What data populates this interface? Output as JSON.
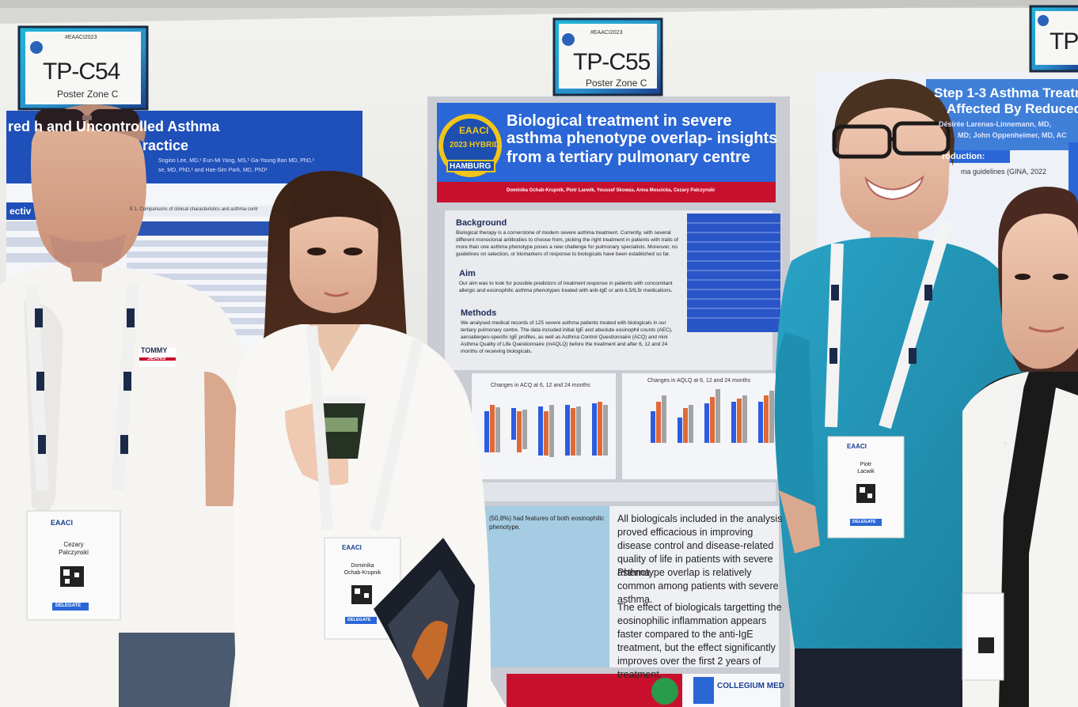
{
  "signs": [
    {
      "code": "TP-C54",
      "zone": "Poster Zone C",
      "tag": "#EAACI2023"
    },
    {
      "code": "TP-C55",
      "zone": "Poster Zone C",
      "tag": "#EAACI2023"
    },
    {
      "code": "TP",
      "zone": "",
      "tag": ""
    }
  ],
  "left_poster": {
    "title_line1": "red  h and Uncontrolled Asthma",
    "title_line2": "ractice",
    "authors": "Sngioo Lee, MD,¹ Eun-Mi Yang, MS,¹ Ga-Young Ban MD, PhD,¹",
    "authors2": "se, MD, PhD,¹ and Hae-Sim Park, MD, PhD¹",
    "section": "ectiv",
    "table_caption": "E 1. Comparisons of clinical characteristics and asthma contr"
  },
  "center_poster": {
    "logo_top": "EAACI",
    "logo_mid": "2023 HYBRID",
    "logo_bottom": "HAMBURG",
    "title_line1": "Biological treatment in severe",
    "title_line2": "asthma phenotype overlap- insights",
    "title_line3": "from a tertiary pulmonary centre",
    "authors": "Dominika Ochab-Krupnik, Piotr Lacwik, Youssef Skowas, Anna Moscicka, Cezary Palczynski",
    "background_heading": "Background",
    "background_text": "Biological therapy is a cornerstone of modern severe asthma treatment. Currently, with several different monoclonal antibodies to choose from, picking the right treatment in patients with traits of more than one asthma phenotype poses a new challenge for pulmonary specialists. Moreover, no guidelines on selection, or biomarkers of response to biologicals have been established so far.",
    "aim_heading": "Aim",
    "aim_text": "Our aim was to look for possible predictors of treatment response in patients with concomitant allergic and eosinophilic asthma phenotypes treated with anti-IgE or anti-IL5/IL5r medications.",
    "methods_heading": "Methods",
    "methods_text": "We analysed medical records of 125 severe asthma patients treated with biologicals in our tertiary pulmonary centre. The data included initial IgE and absolute eosinophil counts (AEC), aeroallergen-specific IgE profiles, as well as Asthma Control Questionnaire (ACQ) and mini Asthma Quality of Life Questionnaire (mAQLQ) before the treatment and after 6, 12 and 24 months of receiving biologicals.",
    "chart1_title": "Changes in ACQ at 6, 12 and 24 months",
    "chart2_title": "Changes in AQLQ at 6, 12 and 24 months",
    "results_text": "(50,8%) had features of both eosinophilic phenotype.",
    "conclusion1": "All biologicals included in the analysis proved efficacious in improving disease control and disease-related quality of life in patients with severe asthma.",
    "conclusion2": "Phenotype overlap is relatively common among patients with severe asthma.",
    "conclusion3": "The effect of biologicals targetting the eosinophilic inflammation appears faster compared to the anti-IgE treatment, but the effect significantly improves over the first 2 years of treatment.",
    "footer_logo": "COLLEGIUM MED"
  },
  "right_poster": {
    "title_line1": "Step 1-3 Asthma Treatme",
    "title_line2": "Affected By Reduced In",
    "authors": "Désirée Larenas-Linnemann, MD,",
    "authors2": "MD; John Oppenheimer, MD, AC",
    "intro_heading": "roduction:",
    "intro_text": "ma guidelines (GINA, 2022"
  },
  "badges": [
    {
      "org": "EAACI",
      "first": "Cezary",
      "last": "Palczynski",
      "role": "DELEGATE"
    },
    {
      "org": "EAACI",
      "first": "Dominika",
      "last": "Ochab-Krupnik",
      "role": "DELEGATE"
    },
    {
      "org": "EAACI",
      "first": "Piotr",
      "last": "Lacwik",
      "role": "DELEGATE"
    }
  ],
  "shirt_brand": {
    "line1": "TOMMY",
    "line2": "JEANS"
  },
  "colors": {
    "poster_blue": "#1f4fb8",
    "title_band": "#2a66d6",
    "accent_red": "#c8102e",
    "teal_shirt": "#1f8fb0",
    "wall": "#e6e6e4"
  }
}
